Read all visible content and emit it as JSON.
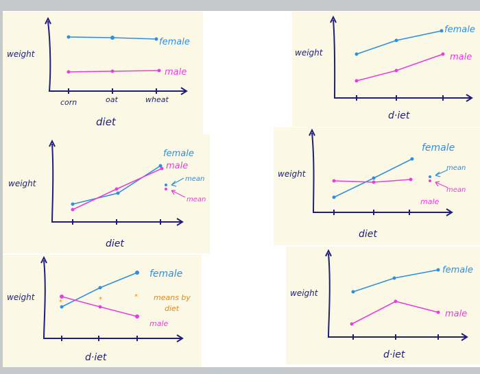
{
  "colors": {
    "background": "#fbf8e6",
    "axis": "#1f1d7a",
    "female": "#2e8fe0",
    "male": "#e83ee0",
    "means": "#e08a1c"
  },
  "axis_labels": {
    "weight": "weight",
    "diet": "diet",
    "diet_dotted": "d·iet"
  },
  "categories": [
    "corn",
    "oat",
    "wheat"
  ],
  "series_labels": {
    "female": "female",
    "male": "male",
    "mean": "mean",
    "means_by_diet_line1": "means by",
    "means_by_diet_line2": "diet"
  },
  "chart_data": [
    {
      "type": "line",
      "panel": 1,
      "x": [
        "corn",
        "oat",
        "wheat"
      ],
      "series": [
        {
          "name": "female",
          "values": [
            3,
            3,
            3
          ]
        },
        {
          "name": "male",
          "values": [
            1,
            1,
            1
          ]
        }
      ]
    },
    {
      "type": "line",
      "panel": 2,
      "series": [
        {
          "name": "female",
          "values": [
            2,
            2.5,
            3
          ]
        },
        {
          "name": "male",
          "values": [
            1,
            1.5,
            2
          ]
        }
      ]
    },
    {
      "type": "line",
      "panel": 3,
      "series": [
        {
          "name": "female",
          "values": [
            1,
            1.3,
            2.2
          ]
        },
        {
          "name": "male",
          "values": [
            0.9,
            1.5,
            2.1
          ]
        }
      ]
    },
    {
      "type": "line",
      "panel": 4,
      "series": [
        {
          "name": "female",
          "values": [
            1,
            1.9,
            2.8
          ]
        },
        {
          "name": "male",
          "values": [
            1.8,
            1.8,
            1.9
          ]
        }
      ]
    },
    {
      "type": "line",
      "panel": 5,
      "series": [
        {
          "name": "female",
          "values": [
            1.6,
            2.2,
            2.8
          ]
        },
        {
          "name": "male",
          "values": [
            2,
            1.6,
            1.2
          ]
        }
      ]
    },
    {
      "type": "line",
      "panel": 6,
      "series": [
        {
          "name": "female",
          "values": [
            2.2,
            2.6,
            2.9
          ]
        },
        {
          "name": "male",
          "values": [
            1,
            1.6,
            1.2
          ]
        }
      ]
    }
  ]
}
